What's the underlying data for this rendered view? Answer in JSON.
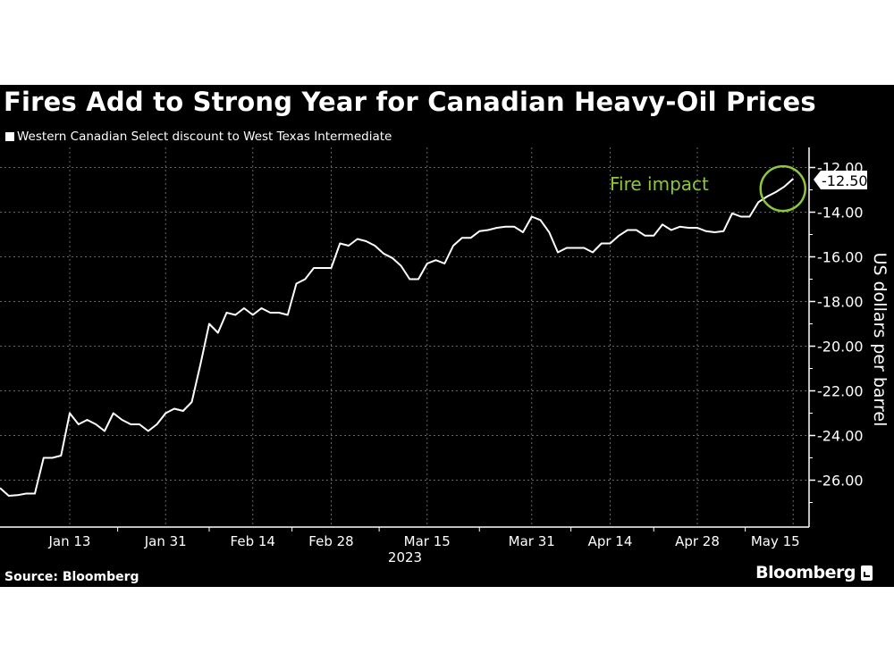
{
  "title": "Fires Add to Strong Year for Canadian Heavy-Oil Prices",
  "source": "Source: Bloomberg",
  "brand": "Bloomberg",
  "colors": {
    "background": "#000000",
    "line": "#ffffff",
    "annotation": "#8dc63f",
    "grid": "#555555"
  },
  "chart_data": {
    "type": "line",
    "title": "Fires Add to Strong Year for Canadian Heavy-Oil Prices",
    "legend": [
      "Western Canadian Select discount to West Texas Intermediate"
    ],
    "legend_placement": "top-left",
    "ylabel": "US dollars per barrel",
    "xlabel": "2023",
    "ylim": [
      -28.1,
      -11.1
    ],
    "y_ticks": [
      "-12.00",
      "-14.00",
      "-16.00",
      "-18.00",
      "-20.00",
      "-22.00",
      "-24.00",
      "-26.00"
    ],
    "x_ticks": [
      {
        "date": "2023-01-13",
        "label": "Jan 13"
      },
      {
        "date": "2023-01-31",
        "label": "Jan 31"
      },
      {
        "date": "2023-02-14",
        "label": "Feb 14"
      },
      {
        "date": "2023-02-28",
        "label": "Feb 28"
      },
      {
        "date": "2023-03-15",
        "label": "Mar 15"
      },
      {
        "date": "2023-03-31",
        "label": "Mar 31"
      },
      {
        "date": "2023-04-14",
        "label": "Apr 14"
      },
      {
        "date": "2023-04-28",
        "label": "Apr 28"
      },
      {
        "date": "2023-05-15",
        "label": "May 15"
      }
    ],
    "grid": true,
    "y_axis_side": "right",
    "last_value_label": "-12.50",
    "annotation": {
      "text": "Fire impact",
      "circled_range": [
        "2023-05-09",
        "2023-05-15"
      ]
    },
    "series": [
      {
        "name": "Western Canadian Select discount to West Texas Intermediate",
        "points": [
          [
            "2023-01-03",
            -26.35
          ],
          [
            "2023-01-04",
            -26.7
          ],
          [
            "2023-01-05",
            -26.67
          ],
          [
            "2023-01-06",
            -26.6
          ],
          [
            "2023-01-09",
            -26.6
          ],
          [
            "2023-01-10",
            -25.0
          ],
          [
            "2023-01-11",
            -25.0
          ],
          [
            "2023-01-12",
            -24.9
          ],
          [
            "2023-01-13",
            -23.0
          ],
          [
            "2023-01-17",
            -23.5
          ],
          [
            "2023-01-18",
            -23.3
          ],
          [
            "2023-01-19",
            -23.5
          ],
          [
            "2023-01-20",
            -23.8
          ],
          [
            "2023-01-23",
            -23.0
          ],
          [
            "2023-01-24",
            -23.3
          ],
          [
            "2023-01-25",
            -23.5
          ],
          [
            "2023-01-26",
            -23.5
          ],
          [
            "2023-01-27",
            -23.8
          ],
          [
            "2023-01-30",
            -23.5
          ],
          [
            "2023-01-31",
            -23.0
          ],
          [
            "2023-02-01",
            -22.8
          ],
          [
            "2023-02-02",
            -22.9
          ],
          [
            "2023-02-03",
            -22.5
          ],
          [
            "2023-02-06",
            -20.8
          ],
          [
            "2023-02-07",
            -19.0
          ],
          [
            "2023-02-08",
            -19.4
          ],
          [
            "2023-02-09",
            -18.5
          ],
          [
            "2023-02-10",
            -18.6
          ],
          [
            "2023-02-13",
            -18.3
          ],
          [
            "2023-02-14",
            -18.6
          ],
          [
            "2023-02-15",
            -18.3
          ],
          [
            "2023-02-16",
            -18.5
          ],
          [
            "2023-02-17",
            -18.5
          ],
          [
            "2023-02-21",
            -18.6
          ],
          [
            "2023-02-22",
            -17.2
          ],
          [
            "2023-02-23",
            -17.0
          ],
          [
            "2023-02-24",
            -16.5
          ],
          [
            "2023-02-27",
            -16.5
          ],
          [
            "2023-02-28",
            -16.5
          ],
          [
            "2023-03-01",
            -15.4
          ],
          [
            "2023-03-02",
            -15.5
          ],
          [
            "2023-03-03",
            -15.2
          ],
          [
            "2023-03-06",
            -15.3
          ],
          [
            "2023-03-07",
            -15.5
          ],
          [
            "2023-03-08",
            -15.85
          ],
          [
            "2023-03-09",
            -16.05
          ],
          [
            "2023-03-10",
            -16.4
          ],
          [
            "2023-03-13",
            -17.0
          ],
          [
            "2023-03-14",
            -17.0
          ],
          [
            "2023-03-15",
            -16.3
          ],
          [
            "2023-03-16",
            -16.15
          ],
          [
            "2023-03-17",
            -16.3
          ],
          [
            "2023-03-20",
            -15.5
          ],
          [
            "2023-03-21",
            -15.15
          ],
          [
            "2023-03-22",
            -15.15
          ],
          [
            "2023-03-23",
            -14.85
          ],
          [
            "2023-03-24",
            -14.8
          ],
          [
            "2023-03-27",
            -14.7
          ],
          [
            "2023-03-28",
            -14.65
          ],
          [
            "2023-03-29",
            -14.65
          ],
          [
            "2023-03-30",
            -14.9
          ],
          [
            "2023-03-31",
            -14.2
          ],
          [
            "2023-04-03",
            -14.35
          ],
          [
            "2023-04-04",
            -14.9
          ],
          [
            "2023-04-05",
            -15.8
          ],
          [
            "2023-04-06",
            -15.6
          ],
          [
            "2023-04-10",
            -15.6
          ],
          [
            "2023-04-11",
            -15.6
          ],
          [
            "2023-04-12",
            -15.8
          ],
          [
            "2023-04-13",
            -15.4
          ],
          [
            "2023-04-14",
            -15.4
          ],
          [
            "2023-04-17",
            -15.05
          ],
          [
            "2023-04-18",
            -14.8
          ],
          [
            "2023-04-19",
            -14.8
          ],
          [
            "2023-04-20",
            -15.05
          ],
          [
            "2023-04-21",
            -15.05
          ],
          [
            "2023-04-24",
            -14.55
          ],
          [
            "2023-04-25",
            -14.8
          ],
          [
            "2023-04-26",
            -14.65
          ],
          [
            "2023-04-27",
            -14.7
          ],
          [
            "2023-04-28",
            -14.7
          ],
          [
            "2023-05-01",
            -14.85
          ],
          [
            "2023-05-02",
            -14.9
          ],
          [
            "2023-05-03",
            -14.85
          ],
          [
            "2023-05-04",
            -14.05
          ],
          [
            "2023-05-05",
            -14.2
          ],
          [
            "2023-05-08",
            -14.2
          ],
          [
            "2023-05-09",
            -13.55
          ],
          [
            "2023-05-10",
            -13.3
          ],
          [
            "2023-05-11",
            -13.1
          ],
          [
            "2023-05-12",
            -12.85
          ],
          [
            "2023-05-15",
            -12.5
          ]
        ]
      }
    ]
  }
}
